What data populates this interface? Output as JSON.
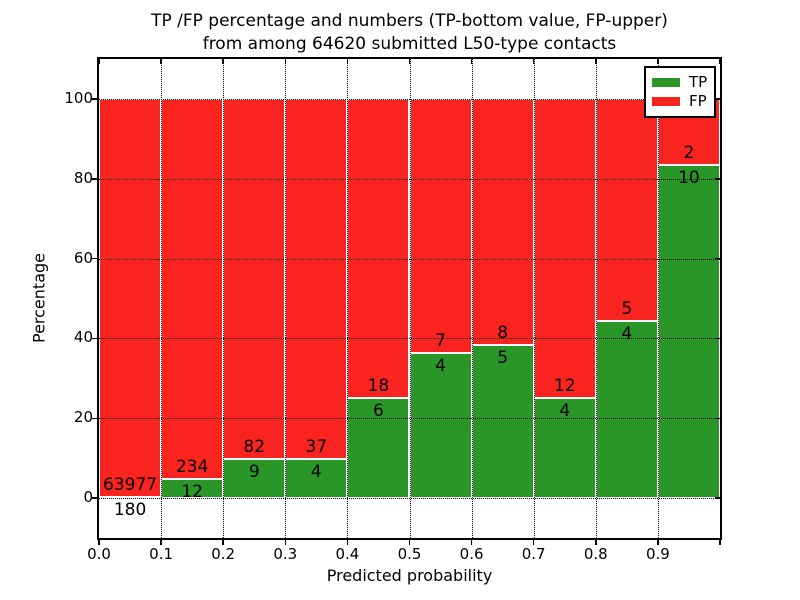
{
  "chart_data": {
    "type": "bar",
    "stacked": true,
    "orientation": "vertical",
    "title_line1": "TP /FP percentage and numbers (TP-bottom value, FP-upper)",
    "title_line2": "from among 64620 submitted L50-type contacts",
    "total_submitted_contacts": 64620,
    "xlabel": "Predicted probability",
    "ylabel": "Percentage",
    "xlim": [
      0.0,
      1.0
    ],
    "ylim": [
      -10,
      110
    ],
    "x_tick_labels": [
      "0.0",
      "0.1",
      "0.2",
      "0.3",
      "0.4",
      "0.5",
      "0.6",
      "0.7",
      "0.8",
      "0.9"
    ],
    "y_tick_values": [
      0,
      20,
      40,
      60,
      80,
      100
    ],
    "grid": {
      "visible": true,
      "style": "dotted",
      "color": "#000000"
    },
    "bar_edge_color": "#ffffff",
    "text_color": "#000000",
    "series": [
      {
        "name": "TP",
        "color": "#2a9628",
        "position": "bottom"
      },
      {
        "name": "FP",
        "color": "#f92420",
        "position": "top"
      }
    ],
    "legend": {
      "position": "upper right",
      "entries": [
        "TP",
        "FP"
      ]
    },
    "bins": [
      {
        "range": [
          0.0,
          0.1
        ],
        "tp": 180,
        "fp": 63977
      },
      {
        "range": [
          0.1,
          0.2
        ],
        "tp": 12,
        "fp": 234
      },
      {
        "range": [
          0.2,
          0.3
        ],
        "tp": 9,
        "fp": 82
      },
      {
        "range": [
          0.3,
          0.4
        ],
        "tp": 4,
        "fp": 37
      },
      {
        "range": [
          0.4,
          0.5
        ],
        "tp": 6,
        "fp": 18
      },
      {
        "range": [
          0.5,
          0.6
        ],
        "tp": 4,
        "fp": 7
      },
      {
        "range": [
          0.6,
          0.7
        ],
        "tp": 5,
        "fp": 8
      },
      {
        "range": [
          0.7,
          0.8
        ],
        "tp": 4,
        "fp": 12
      },
      {
        "range": [
          0.8,
          0.9
        ],
        "tp": 4,
        "fp": 5
      },
      {
        "range": [
          0.9,
          1.0
        ],
        "tp": 10,
        "fp": 2
      }
    ]
  }
}
